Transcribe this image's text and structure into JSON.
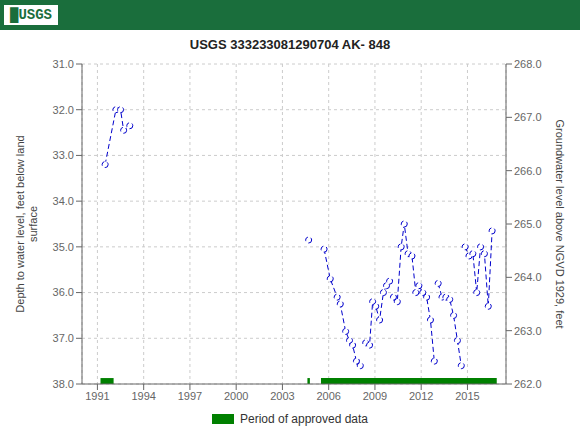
{
  "chart_data": {
    "type": "line",
    "title": "USGS 333233081290704 AK- 848",
    "annotations": [
      {
        "text": "█USGS",
        "color": "#1a6e3c"
      }
    ],
    "ylabel": "Depth to water level, feet below land\nsurface",
    "y2label": "Groundwater level above NGVD 1929, feet",
    "xlim": [
      1990.0,
      2017.5
    ],
    "xticks": [
      1991,
      1994,
      1997,
      2000,
      2003,
      2006,
      2009,
      2012,
      2015
    ],
    "ylim": [
      38.0,
      31.0
    ],
    "yticks": [
      {
        "value": 31.0,
        "label": "31.0"
      },
      {
        "value": 32.0,
        "label": "32.0"
      },
      {
        "value": 33.0,
        "label": "33.0"
      },
      {
        "value": 34.0,
        "label": "34.0"
      },
      {
        "value": 35.0,
        "label": "35.0"
      },
      {
        "value": 36.0,
        "label": "36.0"
      },
      {
        "value": 37.0,
        "label": "37.0"
      },
      {
        "value": 38.0,
        "label": "38.0"
      }
    ],
    "y2lim": [
      262.0,
      268.0
    ],
    "y2ticks": [
      {
        "value": 262.0,
        "label": "262.0"
      },
      {
        "value": 263.0,
        "label": "263.0"
      },
      {
        "value": 264.0,
        "label": "264.0"
      },
      {
        "value": 265.0,
        "label": "265.0"
      },
      {
        "value": 266.0,
        "label": "266.0"
      },
      {
        "value": 267.0,
        "label": "267.0"
      },
      {
        "value": 268.0,
        "label": "268.0"
      }
    ],
    "grid": true,
    "legend": "bottom",
    "series": [
      {
        "color": "#0000cc",
        "marker": "circle",
        "line_style": "dashed",
        "x": [
          1991.5,
          1992.2,
          1992.5,
          1992.7,
          1993.1
        ],
        "values": [
          33.2,
          32.0,
          32.0,
          32.45,
          32.35
        ]
      },
      {
        "color": "#0000cc",
        "marker": "circle",
        "line_style": "dashed",
        "x": [
          2004.7
        ],
        "values": [
          34.85
        ]
      },
      {
        "color": "#0000cc",
        "marker": "circle",
        "line_style": "dashed",
        "x": [
          2005.7,
          2006.1,
          2006.55,
          2006.75,
          2007.1,
          2007.35,
          2007.55,
          2007.8,
          2008.05
        ],
        "values": [
          35.05,
          35.7,
          36.1,
          36.25,
          36.85,
          37.05,
          37.15,
          37.5,
          37.6
        ]
      },
      {
        "color": "#0000cc",
        "marker": "circle",
        "line_style": "dashed",
        "x": [
          2008.4,
          2008.65,
          2008.85,
          2009.05,
          2009.3,
          2009.55,
          2009.75,
          2009.95
        ],
        "values": [
          37.1,
          37.15,
          36.2,
          36.3,
          36.6,
          36.0,
          35.85,
          35.75
        ]
      },
      {
        "color": "#0000cc",
        "marker": "circle",
        "line_style": "dashed",
        "x": [
          2010.2,
          2010.45,
          2010.7,
          2010.9,
          2011.15,
          2011.4,
          2011.65
        ],
        "values": [
          36.1,
          36.2,
          35.0,
          34.5,
          35.15,
          35.2,
          36.0
        ]
      },
      {
        "color": "#0000cc",
        "marker": "circle",
        "line_style": "dashed",
        "x": [
          2011.85,
          2012.1,
          2012.35,
          2012.6,
          2012.85
        ],
        "values": [
          35.85,
          36.0,
          36.1,
          36.6,
          37.5
        ]
      },
      {
        "color": "#0000cc",
        "marker": "circle",
        "line_style": "dashed",
        "x": [
          2013.1,
          2013.35,
          2013.6,
          2013.85,
          2014.1,
          2014.35,
          2014.6
        ],
        "values": [
          35.8,
          36.1,
          36.1,
          36.15,
          36.5,
          37.05,
          37.6
        ]
      },
      {
        "color": "#0000cc",
        "marker": "circle",
        "line_style": "dashed",
        "x": [
          2014.85,
          2015.1,
          2015.35,
          2015.6,
          2015.85,
          2016.1,
          2016.35,
          2016.6
        ],
        "values": [
          35.0,
          35.2,
          35.15,
          36.0,
          35.0,
          35.15,
          36.3,
          34.65
        ]
      }
    ],
    "approved_periods": {
      "name": "Period of approved data",
      "color": "#008000",
      "y_range": [
        37.87,
        38.0
      ],
      "segments": [
        [
          1991.2,
          1992.05
        ],
        [
          2004.62,
          2004.78
        ],
        [
          2005.5,
          2016.9
        ]
      ]
    }
  }
}
